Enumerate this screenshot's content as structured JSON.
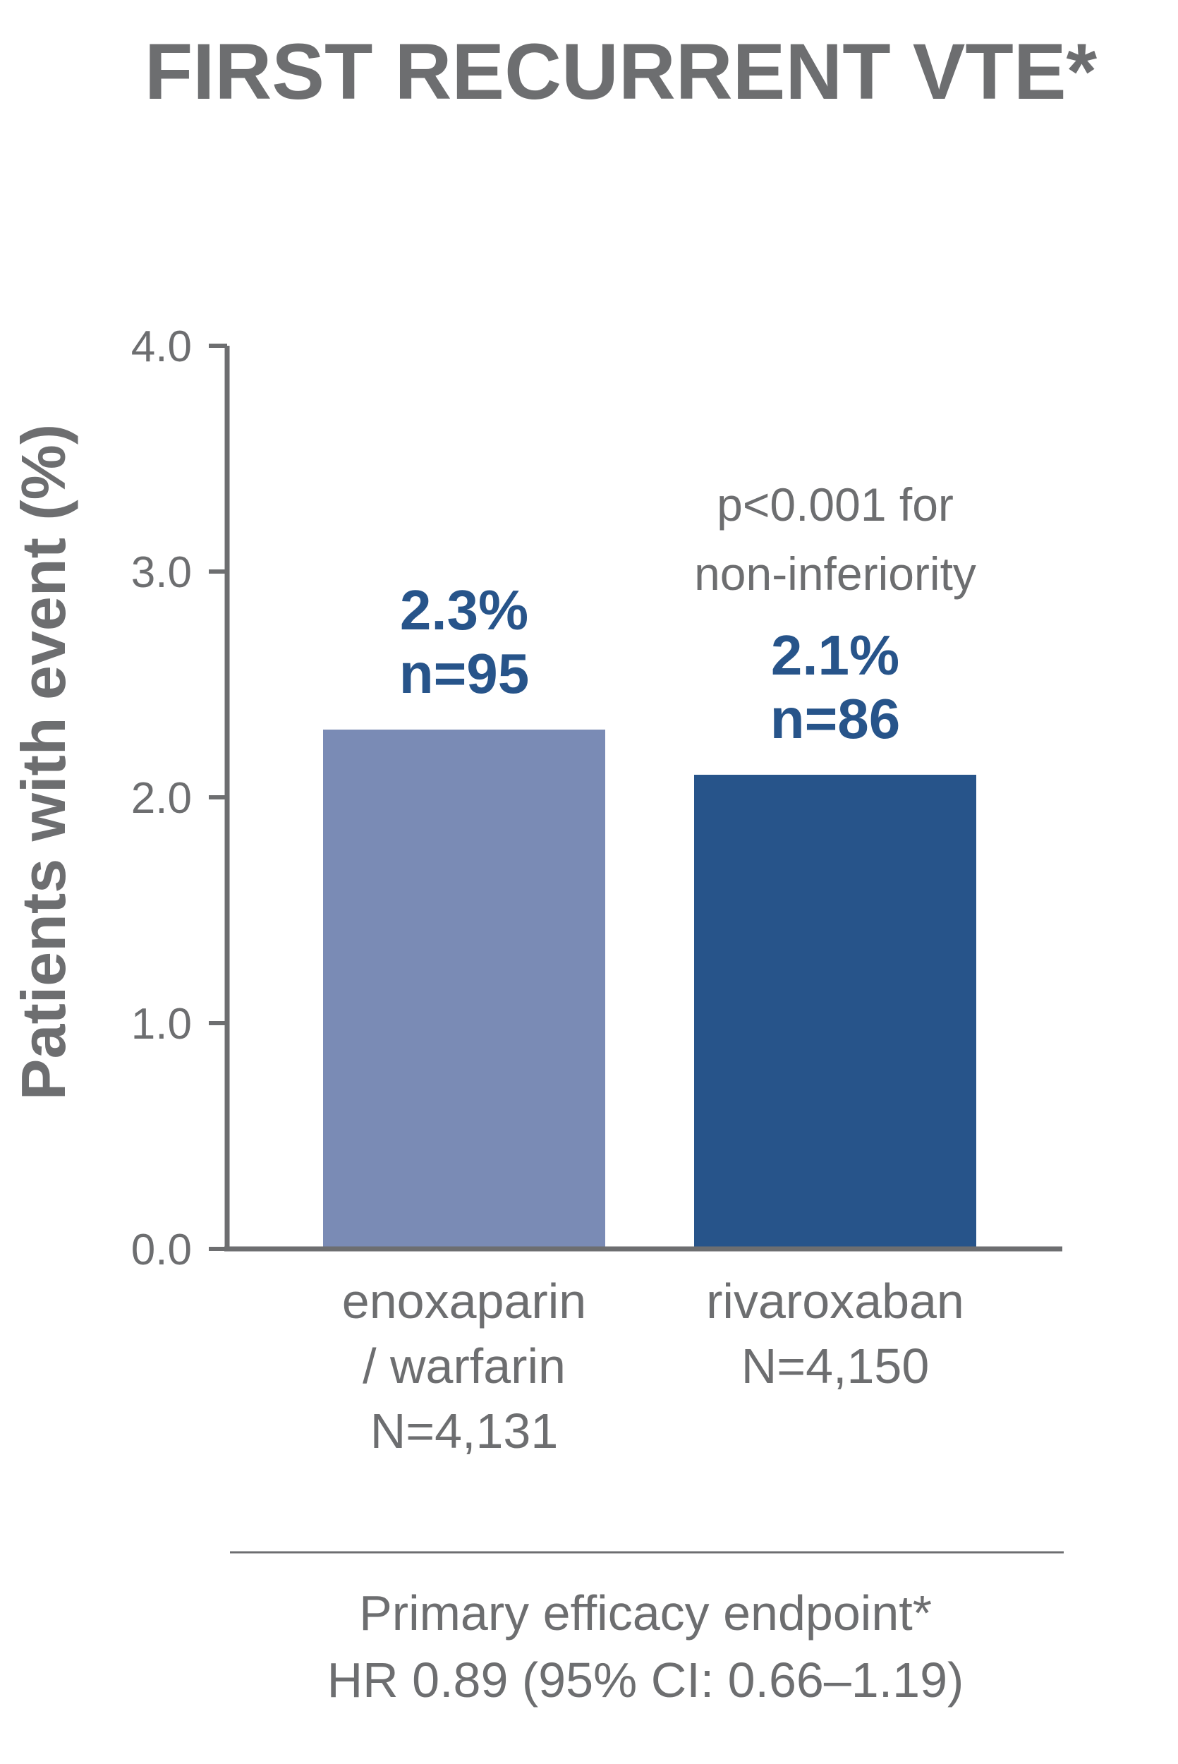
{
  "chart_data": {
    "type": "bar",
    "title": "FIRST RECURRENT VTE*",
    "ylabel": "Patients with event (%)",
    "xlabel": "",
    "ylim": [
      0,
      4
    ],
    "yticks": [
      "0.0",
      "1.0",
      "2.0",
      "3.0",
      "4.0"
    ],
    "grid": false,
    "categories": [
      [
        "enoxaparin",
        "/ warfarin",
        "N=4,131"
      ],
      [
        "rivaroxaban",
        "N=4,150"
      ]
    ],
    "values": [
      2.3,
      2.1
    ],
    "colors": [
      "#7a8bb5",
      "#27548a"
    ],
    "data_labels": [
      [
        "2.3%",
        "n=95"
      ],
      [
        "2.1%",
        "n=86"
      ]
    ],
    "annotation": [
      "p<0.001 for",
      "non-inferiority"
    ],
    "footer": [
      "Primary efficacy endpoint*",
      "HR 0.89 (95% CI: 0.66–1.19)"
    ]
  }
}
